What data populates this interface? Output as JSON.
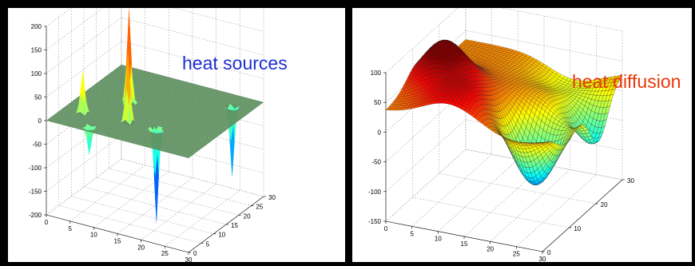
{
  "colors": {
    "background": "#000000",
    "sources_annotation": "#1f2fd0",
    "diffusion_annotation": "#e8380c",
    "flat_surface": "#5f9060"
  },
  "chart_data": [
    {
      "type": "surface",
      "annotation": "heat sources",
      "x": {
        "range": [
          0,
          30
        ],
        "ticks": [
          0,
          5,
          10,
          15,
          20,
          25,
          30
        ]
      },
      "y": {
        "range": [
          0,
          30
        ],
        "ticks": [
          0,
          5,
          10,
          15,
          20,
          25,
          30
        ]
      },
      "z": {
        "range": [
          -200,
          200
        ],
        "ticks": [
          -200,
          -150,
          -100,
          -50,
          0,
          50,
          100,
          150,
          200
        ]
      },
      "grid": true,
      "baseline": 0,
      "sources": [
        {
          "x": 9,
          "y": 16,
          "value": 200
        },
        {
          "x": 13,
          "y": 8,
          "value": 150
        },
        {
          "x": 4,
          "y": 7,
          "value": 90
        },
        {
          "x": 19,
          "y": 8,
          "value": -200
        },
        {
          "x": 26,
          "y": 25,
          "value": -150
        },
        {
          "x": 8,
          "y": 2,
          "value": -60
        }
      ]
    },
    {
      "type": "surface",
      "annotation": "heat diffusion",
      "x": {
        "range": [
          0,
          30
        ],
        "ticks": [
          0,
          5,
          10,
          15,
          20,
          25,
          30
        ]
      },
      "y": {
        "range": [
          0,
          30
        ],
        "ticks": [
          0,
          10,
          20,
          30
        ]
      },
      "z": {
        "range": [
          -150,
          100
        ],
        "ticks": [
          -150,
          -100,
          -50,
          0,
          50,
          100
        ]
      },
      "grid": true,
      "colormap": "jet"
    }
  ]
}
